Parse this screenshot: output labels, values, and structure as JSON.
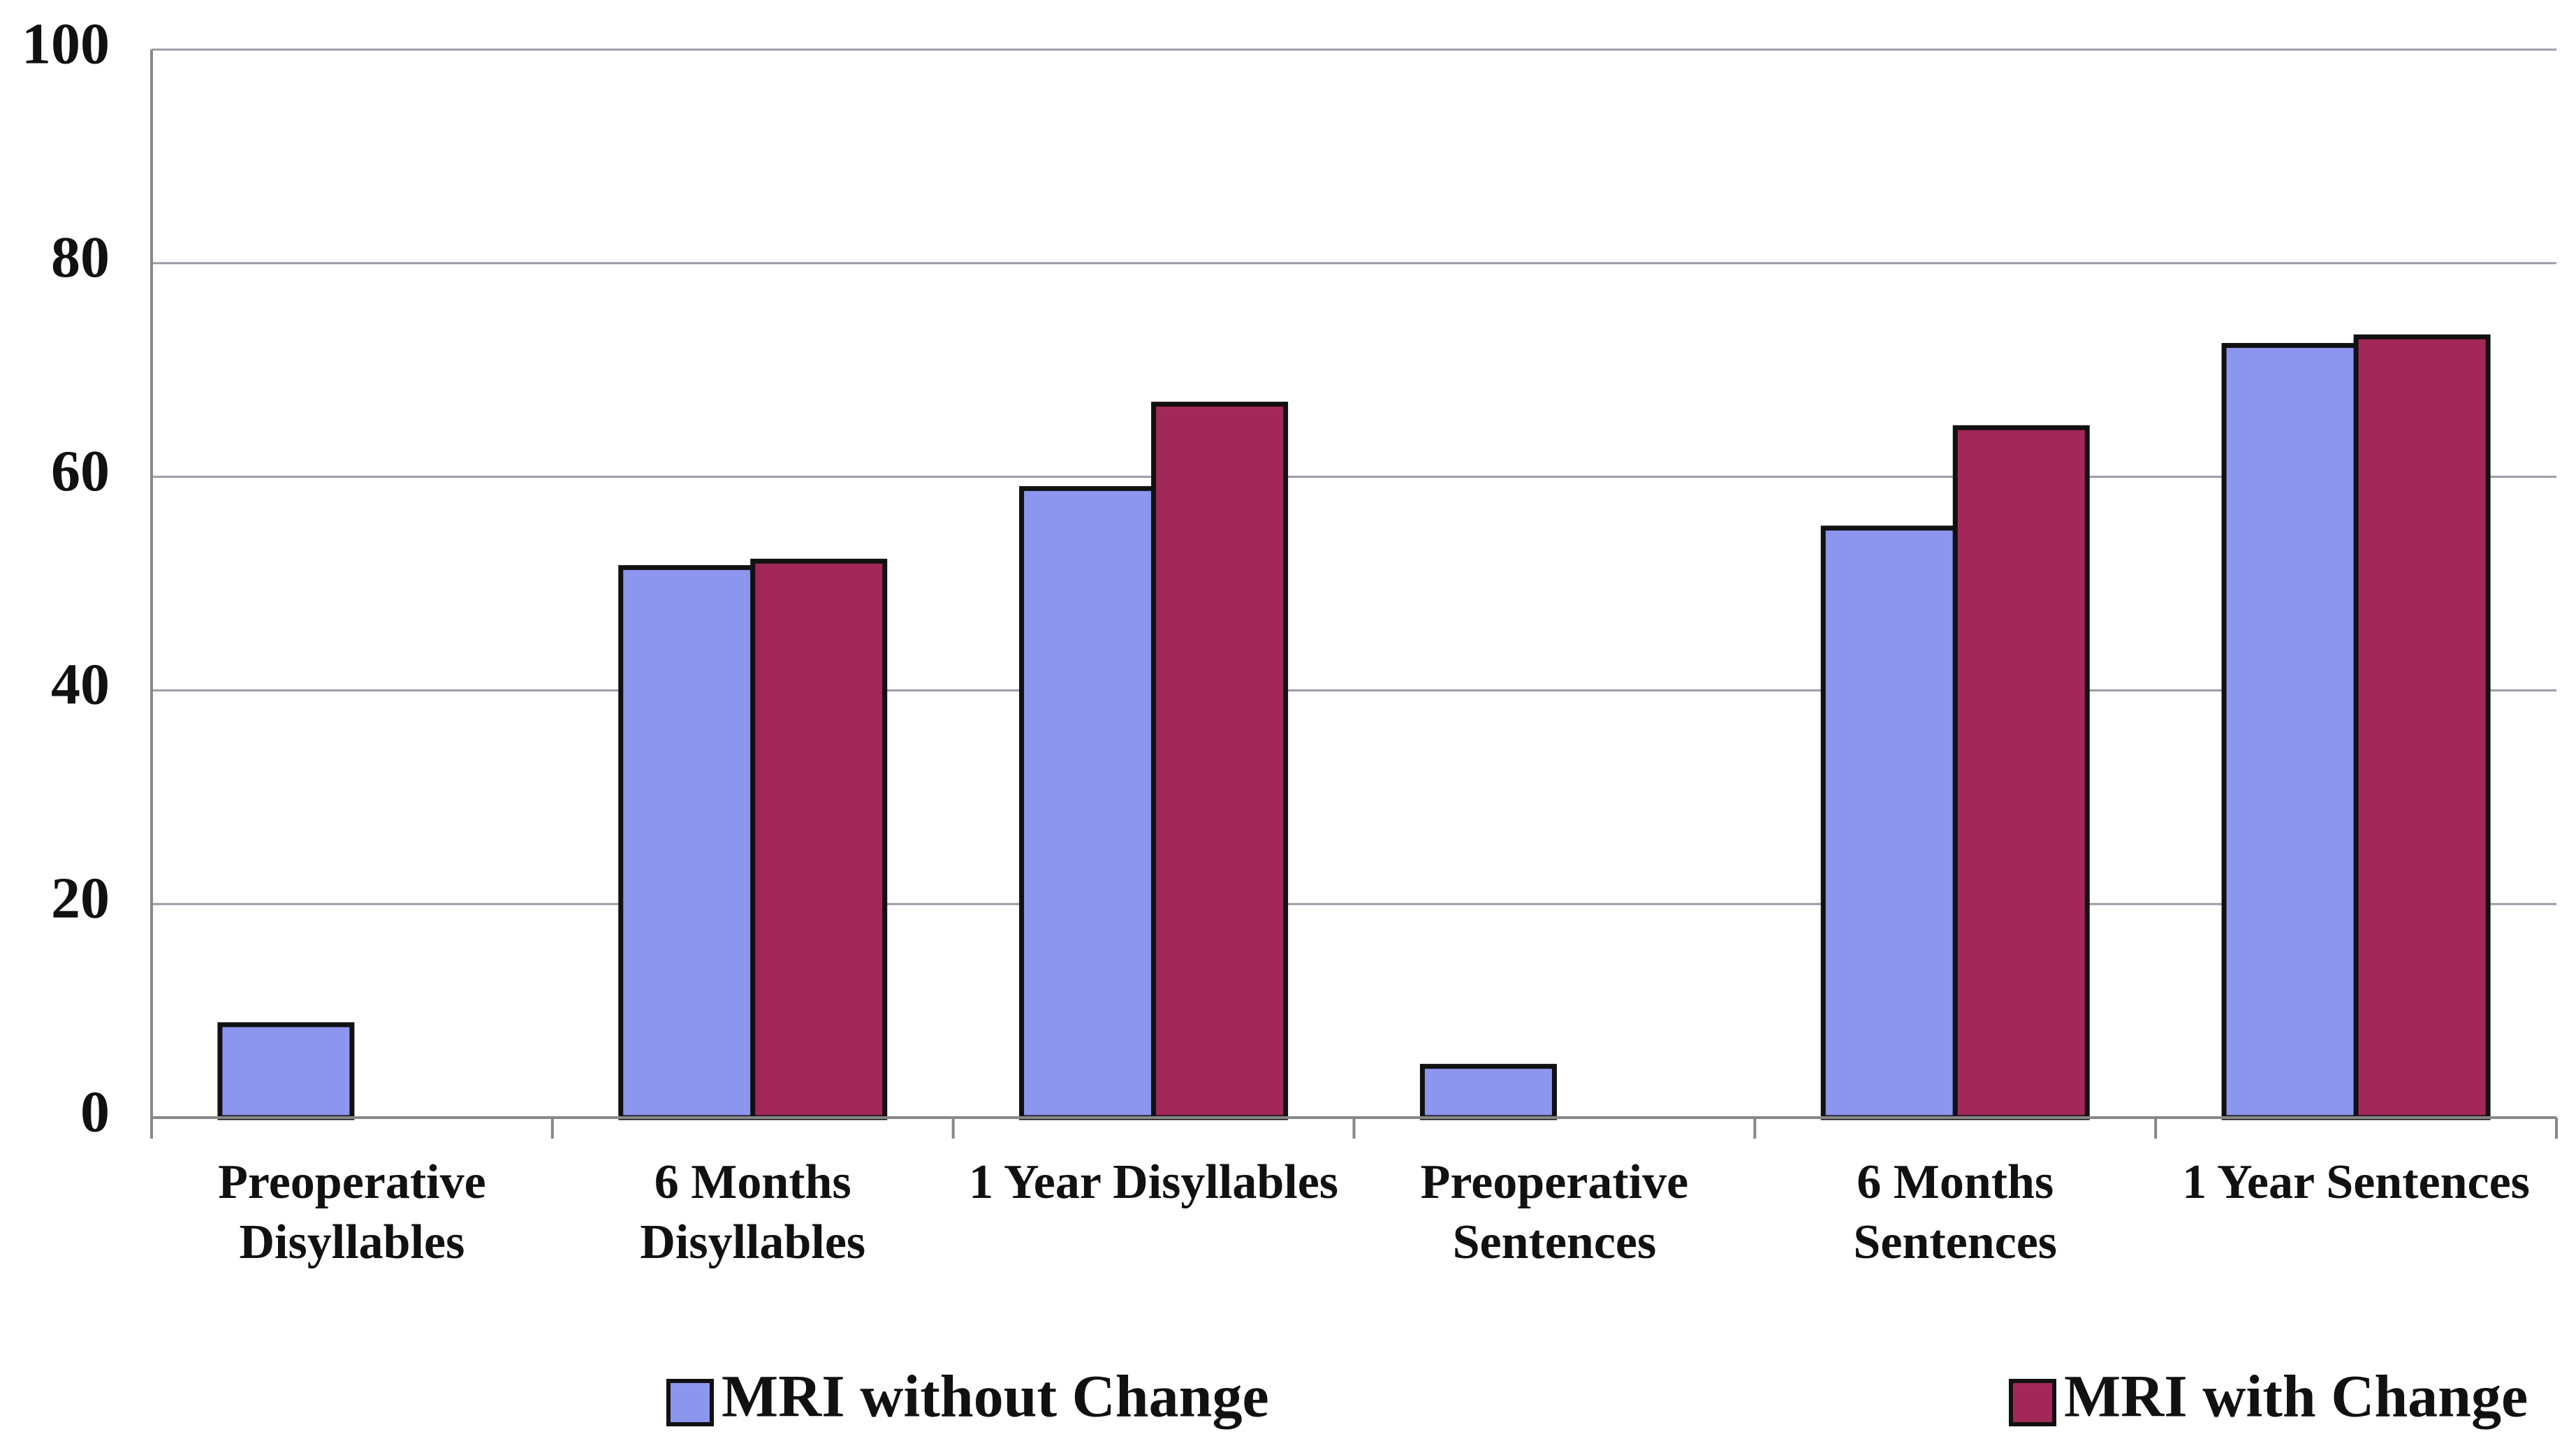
{
  "chart_data": {
    "type": "bar",
    "categories": [
      "Preoperative Disyllables",
      "6 Months Disyllables",
      "1 Year Disyllables",
      "Preoperative Sentences",
      "6 Months Sentences",
      "1 Year Sentences"
    ],
    "series": [
      {
        "name": "MRI without Change",
        "color": "#8c96ee",
        "values": [
          8.7,
          51.5,
          58.9,
          4.8,
          55.2,
          72.3
        ]
      },
      {
        "name": "MRI with Change",
        "color": "#a3285a",
        "values": [
          0,
          52.1,
          66.8,
          0,
          64.6,
          73.1
        ]
      }
    ],
    "ylim": [
      0,
      100
    ],
    "yticks": [
      0,
      20,
      40,
      60,
      80,
      100
    ],
    "grid": true
  }
}
